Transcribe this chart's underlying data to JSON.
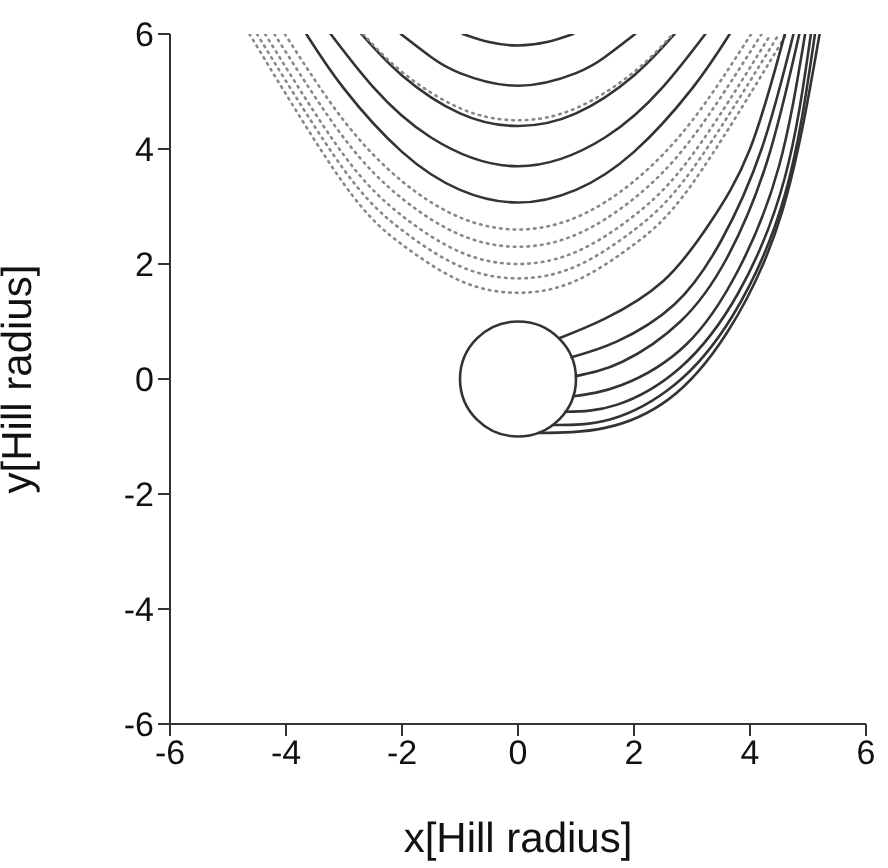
{
  "chart_data": {
    "type": "line",
    "xlabel": "x[Hill radius]",
    "ylabel": "y[Hill radius]",
    "xlim": [
      -6,
      6
    ],
    "ylim": [
      -6,
      6
    ],
    "xticks": [
      -6,
      -4,
      -2,
      0,
      2,
      4,
      6
    ],
    "yticks": [
      -6,
      -4,
      -2,
      0,
      2,
      4,
      6
    ],
    "grid": false,
    "legend": false,
    "marker": "none",
    "series": [
      {
        "color": "#333333",
        "line_style": "solid",
        "x": [
          -0.95,
          -0.5,
          0,
          0.5,
          0.95
        ],
        "values": [
          6,
          5.86,
          5.8,
          5.86,
          6
        ]
      },
      {
        "color": "#333333",
        "line_style": "solid",
        "x": [
          -2.02,
          -1.5,
          -1,
          0,
          1,
          1.5,
          2.02
        ],
        "values": [
          6,
          5.6,
          5.32,
          5.1,
          5.32,
          5.6,
          6
        ]
      },
      {
        "color": "#333333",
        "line_style": "solid",
        "x": [
          -2.7,
          -2,
          -1,
          0,
          1,
          2,
          2.7
        ],
        "values": [
          6,
          5.28,
          4.62,
          4.4,
          4.62,
          5.28,
          6
        ]
      },
      {
        "color": "#333333",
        "line_style": "solid",
        "x": [
          -3.23,
          -2.5,
          -1.5,
          0,
          1.5,
          2.5,
          3.23
        ],
        "values": [
          6,
          5.08,
          4.2,
          3.7,
          4.2,
          5.08,
          6
        ]
      },
      {
        "color": "#333333",
        "line_style": "solid",
        "x": [
          -3.65,
          -3,
          -2,
          -1,
          0,
          1,
          2,
          3,
          3.65
        ],
        "values": [
          6,
          5.05,
          3.95,
          3.29,
          3.07,
          3.29,
          3.95,
          5.05,
          6
        ]
      },
      {
        "color": "#888888",
        "line_style": "dotted",
        "x": [
          -2.67,
          -2,
          -1,
          0,
          1,
          2,
          2.67
        ],
        "values": [
          6,
          5.34,
          4.71,
          4.5,
          4.71,
          5.34,
          6
        ]
      },
      {
        "color": "#888888",
        "line_style": "dotted",
        "x": [
          -4.02,
          -3,
          -2,
          -1,
          0,
          1,
          2,
          3,
          4.02
        ],
        "values": [
          6,
          4.49,
          3.44,
          2.81,
          2.6,
          2.81,
          3.44,
          4.49,
          6
        ]
      },
      {
        "color": "#888888",
        "line_style": "dotted",
        "x": [
          -4.2,
          -3,
          -2,
          -1,
          0,
          1,
          2,
          3,
          4.2
        ],
        "values": [
          6,
          4.19,
          3.14,
          2.51,
          2.3,
          2.51,
          3.14,
          4.19,
          6
        ]
      },
      {
        "color": "#888888",
        "line_style": "dotted",
        "x": [
          -4.36,
          -3,
          -2,
          -1,
          0,
          1,
          2,
          3,
          4.36
        ],
        "values": [
          6,
          3.89,
          2.84,
          2.21,
          2,
          2.21,
          2.84,
          3.89,
          6
        ]
      },
      {
        "color": "#888888",
        "line_style": "dotted",
        "x": [
          -4.5,
          -3,
          -2,
          -1,
          0,
          1,
          2,
          3,
          4.5
        ],
        "values": [
          6,
          3.64,
          2.59,
          1.96,
          1.75,
          1.96,
          2.59,
          3.64,
          6
        ]
      },
      {
        "color": "#888888",
        "line_style": "dotted",
        "x": [
          -4.63,
          -3,
          -2,
          -1,
          0,
          1,
          2,
          3,
          4.63
        ],
        "values": [
          6,
          3.39,
          2.34,
          1.71,
          1.5,
          1.71,
          2.34,
          3.39,
          6
        ]
      },
      {
        "color": "#333333",
        "line_style": "solid",
        "x": [
          0.71,
          1.5,
          2.5,
          3.3,
          4,
          4.6
        ],
        "values": [
          0.71,
          1.05,
          1.7,
          2.7,
          4,
          6
        ]
      },
      {
        "color": "#333333",
        "line_style": "solid",
        "x": [
          0.92,
          1.7,
          2.7,
          3.5,
          4.2,
          4.75
        ],
        "values": [
          0.38,
          0.65,
          1.3,
          2.4,
          4,
          6
        ]
      },
      {
        "color": "#333333",
        "line_style": "solid",
        "x": [
          1,
          1.8,
          2.8,
          3.6,
          4.3,
          4.85
        ],
        "values": [
          0.05,
          0.3,
          1,
          2.1,
          3.8,
          6
        ]
      },
      {
        "color": "#333333",
        "line_style": "solid",
        "x": [
          0.95,
          1.8,
          2.9,
          3.8,
          4.5,
          4.95
        ],
        "values": [
          -0.3,
          -0.1,
          0.6,
          1.9,
          3.7,
          6
        ]
      },
      {
        "color": "#333333",
        "line_style": "solid",
        "x": [
          0.82,
          1.7,
          2.8,
          3.8,
          4.6,
          5.05
        ],
        "values": [
          -0.57,
          -0.45,
          0.2,
          1.5,
          3.5,
          6
        ]
      },
      {
        "color": "#333333",
        "line_style": "solid",
        "x": [
          0.6,
          1.6,
          2.7,
          3.7,
          4.6,
          5.12
        ],
        "values": [
          -0.8,
          -0.7,
          -0.1,
          1.1,
          3.2,
          6
        ]
      },
      {
        "color": "#333333",
        "line_style": "solid",
        "x": [
          0.35,
          1.5,
          2.6,
          3.6,
          4.55,
          5.2
        ],
        "values": [
          -0.94,
          -0.85,
          -0.35,
          0.8,
          2.9,
          6
        ]
      }
    ]
  }
}
